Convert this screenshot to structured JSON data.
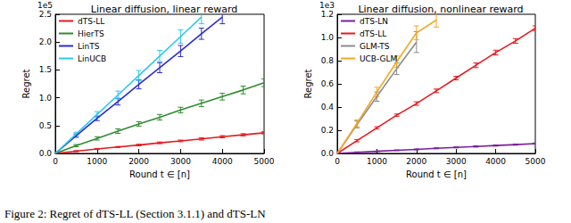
{
  "chart_data": [
    {
      "type": "line",
      "title": "Linear diffusion, linear reward",
      "x_label": "Round t ∈ [n]",
      "y_label": "Regret",
      "annotations": [
        "1e5"
      ],
      "x": [
        0,
        500,
        1000,
        1500,
        2000,
        2500,
        3000,
        3500,
        4000,
        4500,
        5000
      ],
      "xlim": [
        0,
        5000
      ],
      "xticks": [
        0,
        1000,
        2000,
        3000,
        4000,
        5000
      ],
      "ylim": [
        0,
        2.5
      ],
      "yticks": [
        {
          "value": 0,
          "label": "0.0"
        },
        0.5,
        {
          "value": 1,
          "label": "1.0"
        },
        1.5,
        {
          "value": 2,
          "label": "2.0"
        },
        2.5
      ],
      "grid": false,
      "legend": "upper left",
      "series": [
        {
          "name": "dTS-LL",
          "color": "#e8191f",
          "values": [
            0,
            0.04,
            0.08,
            0.115,
            0.15,
            0.19,
            0.225,
            0.26,
            0.3,
            0.335,
            0.37
          ],
          "errors": [
            null,
            0.01,
            0.01,
            0.01,
            0.015,
            0.015,
            0.015,
            0.02,
            0.02,
            0.02,
            0.02
          ]
        },
        {
          "name": "HierTS",
          "color": "#2e8b2e",
          "values": [
            0,
            0.14,
            0.27,
            0.4,
            0.53,
            0.65,
            0.78,
            0.9,
            1.02,
            1.14,
            1.27
          ],
          "errors": [
            null,
            0.02,
            0.03,
            0.04,
            0.04,
            0.05,
            0.05,
            0.06,
            0.06,
            0.07,
            0.07
          ]
        },
        {
          "name": "LinTS",
          "color": "#2b2bd0",
          "values": [
            0,
            0.32,
            0.63,
            0.93,
            1.24,
            1.54,
            1.84,
            2.15,
            2.45,
            null,
            null
          ],
          "errors": [
            null,
            0.03,
            0.04,
            0.06,
            0.08,
            0.09,
            0.1,
            0.1,
            0.12,
            null,
            null
          ]
        },
        {
          "name": "LinUCB",
          "color": "#2ec8ee",
          "values": [
            0,
            0.35,
            0.7,
            1.05,
            1.4,
            1.75,
            2.1,
            2.45,
            null,
            null,
            null
          ],
          "errors": [
            null,
            0.03,
            0.05,
            0.07,
            0.09,
            0.1,
            0.12,
            0.12,
            null,
            null,
            null
          ]
        }
      ]
    },
    {
      "type": "line",
      "title": "Linear diffusion, nonlinear reward",
      "x_label": "Round t ∈ [n]",
      "y_label": "Regret",
      "annotations": [
        "1e3"
      ],
      "x": [
        0,
        500,
        1000,
        1500,
        2000,
        2500,
        3000,
        3500,
        4000,
        4500,
        5000
      ],
      "xlim": [
        0,
        5000
      ],
      "xticks": [
        0,
        1000,
        2000,
        3000,
        4000,
        5000
      ],
      "ylim": [
        0,
        1.2
      ],
      "yticks": [
        {
          "value": 0,
          "label": "0.0"
        },
        0.2,
        0.4,
        0.6,
        0.8,
        {
          "value": 1,
          "label": "1.0"
        },
        1.2
      ],
      "grid": false,
      "legend": "upper left",
      "series": [
        {
          "name": "dTS-LN",
          "color": "#7a1f9a",
          "values": [
            0,
            0.01,
            0.018,
            0.027,
            0.035,
            0.044,
            0.052,
            0.06,
            0.068,
            0.076,
            0.085
          ],
          "errors": [
            null,
            0.003,
            0.003,
            0.003,
            0.004,
            0.004,
            0.004,
            0.005,
            0.005,
            0.005,
            0.005
          ]
        },
        {
          "name": "dTS-LL",
          "color": "#e8191f",
          "values": [
            0,
            0.11,
            0.22,
            0.33,
            0.43,
            0.54,
            0.65,
            0.76,
            0.87,
            0.97,
            1.08
          ],
          "errors": [
            null,
            0.01,
            0.01,
            0.01,
            0.015,
            0.015,
            0.015,
            0.02,
            0.02,
            0.02,
            0.02
          ]
        },
        {
          "name": "GLM-TS",
          "color": "#8c8c8c",
          "values": [
            0,
            0.25,
            0.49,
            0.73,
            0.96,
            null,
            null,
            null,
            null,
            null,
            null
          ],
          "errors": [
            null,
            0.03,
            0.04,
            0.05,
            0.09,
            null,
            null,
            null,
            null,
            null,
            null
          ]
        },
        {
          "name": "UCB-GLM",
          "color": "#f5a623",
          "values": [
            0,
            0.26,
            0.53,
            0.79,
            1.04,
            1.15,
            null,
            null,
            null,
            null,
            null
          ],
          "errors": [
            null,
            0.03,
            0.04,
            0.05,
            0.06,
            0.06,
            null,
            null,
            null,
            null,
            null
          ]
        }
      ]
    }
  ],
  "caption": "Figure 2: Regret of dTS-LL (Section 3.1.1) and dTS-LN"
}
